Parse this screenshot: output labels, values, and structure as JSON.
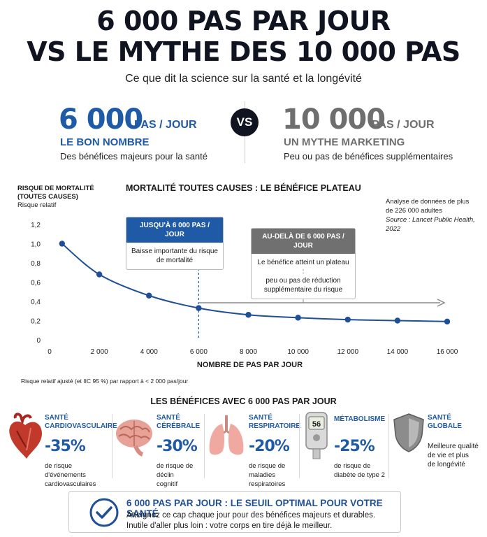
{
  "header": {
    "title_line1": "6 000 PAS PAR JOUR",
    "title_line2": "VS LE MYTHE DES 10 000 PAS",
    "subtitle": "Ce que dit la science sur la santé et la longévité"
  },
  "comparison": {
    "left": {
      "number": "6 000",
      "unit": "PAS / JOUR",
      "label": "LE BON NOMBRE",
      "desc": "Des bénéfices majeurs pour la santé"
    },
    "vs": "VS",
    "right": {
      "number": "10 000",
      "unit": "PAS / JOUR",
      "label": "UN MYTHE MARKETING",
      "desc": "Peu ou pas de bénéfices supplémentaires"
    }
  },
  "chart": {
    "ylabel_lines": [
      "RISQUE DE MORTALITÉ",
      "(TOUTES CAUSES)",
      "Risque relatif"
    ],
    "source_lines": [
      "Analyse de données de plus",
      "de 226 000 adultes"
    ],
    "source_italic": [
      "Source : Lancet Public Health,",
      "2022"
    ],
    "callout_left": {
      "head": "JUSQU'À 6 000 PAS / JOUR",
      "body": [
        "Baisse importante du risque",
        "de mortalité"
      ]
    },
    "callout_right": {
      "head": "AU-DELÀ DE 6 000 PAS / JOUR",
      "body": [
        "Le bénéfice atteint un plateau :",
        "peu ou pas de réduction",
        "supplémentaire du risque"
      ]
    },
    "footnote": "Risque relatif ajusté (et IIC 95 %) par rapport à < 2 000 pas/jour"
  },
  "chart_data": {
    "type": "line",
    "title": "MORTALITÉ TOUTES CAUSES : LE BÉNÉFICE PLATEAU",
    "xlabel": "NOMBRE DE PAS PAR JOUR",
    "ylabel": "RISQUE DE MORTALITÉ (TOUTES CAUSES) Risque relatif",
    "x": [
      500,
      2000,
      4000,
      6000,
      8000,
      10000,
      12000,
      14000,
      16000
    ],
    "series": [
      {
        "values": [
          1.0,
          0.68,
          0.46,
          0.33,
          0.26,
          0.23,
          0.21,
          0.2,
          0.19
        ]
      }
    ],
    "xlim": [
      0,
      16500
    ],
    "ylim": [
      0,
      1.2
    ],
    "xticks": [
      "0",
      "2 000",
      "4 000",
      "6 000",
      "8 000",
      "10 000",
      "12 000",
      "14 000",
      "16 000"
    ],
    "yticks": [
      "0",
      "0,2",
      "0,4",
      "0,6",
      "0,8",
      "1,0",
      "1,2"
    ],
    "xtick_values": [
      0,
      2000,
      4000,
      6000,
      8000,
      10000,
      12000,
      14000,
      16000
    ],
    "ytick_values": [
      0,
      0.2,
      0.4,
      0.6,
      0.8,
      1.0,
      1.2
    ],
    "threshold_x": 6000,
    "grid": false,
    "line_color": "#1f4f95"
  },
  "benefits": {
    "title": "LES BÉNÉFICES AVEC 6 000 PAS PAR JOUR",
    "items": [
      {
        "icon": "heart-icon",
        "title": [
          "SANTÉ",
          "CARDIOVASCULAIRE"
        ],
        "percent": "-35%",
        "desc": [
          "de risque d'événements",
          "cardiovasculaires"
        ]
      },
      {
        "icon": "brain-icon",
        "title": [
          "SANTÉ",
          "CÉRÉBRALE"
        ],
        "percent": "-30%",
        "desc": [
          "de risque de déclin",
          "cognitif"
        ]
      },
      {
        "icon": "lungs-icon",
        "title": [
          "SANTÉ",
          "RESPIRATOIRE"
        ],
        "percent": "-20%",
        "desc": [
          "de risque de maladies",
          "respiratoires"
        ]
      },
      {
        "icon": "glucometer-icon",
        "title": [
          "MÉTABOLISME"
        ],
        "percent": "-25%",
        "desc": [
          "de risque de",
          "diabète de type 2"
        ],
        "meter": "56"
      },
      {
        "icon": "shield-icon",
        "title": [
          "SANTÉ",
          "GLOBALE"
        ],
        "percent": "",
        "desc": [
          "Meilleure qualité",
          "de vie et plus",
          "de longévité"
        ]
      }
    ]
  },
  "conclusion": {
    "title": "6 000 PAS PAR JOUR : LE SEUIL OPTIMAL POUR VOTRE SANTÉ",
    "line1": "Atteignez ce cap chaque jour pour des bénéfices majeurs et durables.",
    "line2": "Inutile d'aller plus loin : votre corps en tire déjà le meilleur."
  },
  "colors": {
    "accent": "#1f5aa6",
    "dark": "#0f1420",
    "gray": "#6e6e6e",
    "callout_blue": "#1f5aa6",
    "callout_gray": "#707070"
  }
}
